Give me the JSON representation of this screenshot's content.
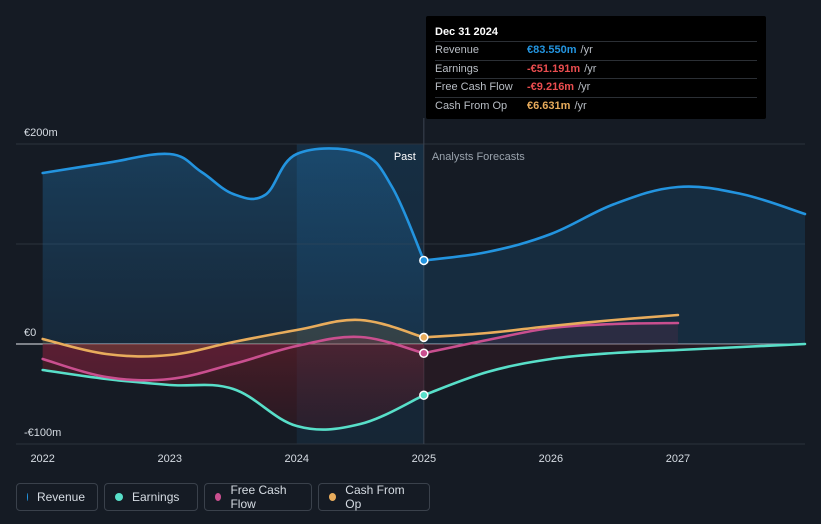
{
  "chart_data": {
    "type": "area",
    "currency": "€",
    "ylim": [
      -100,
      200
    ],
    "y_ticks": [
      {
        "value": 200,
        "label": "€200m"
      },
      {
        "value": 0,
        "label": "€0"
      },
      {
        "value": -100,
        "label": "-€100m"
      }
    ],
    "x_ticks": [
      {
        "value": 2022,
        "label": "2022"
      },
      {
        "value": 2023,
        "label": "2023"
      },
      {
        "value": 2024,
        "label": "2024"
      },
      {
        "value": 2025,
        "label": "2025"
      },
      {
        "value": 2026,
        "label": "2026"
      },
      {
        "value": 2027,
        "label": "2027"
      }
    ],
    "xlim": [
      2021.79,
      2028.0
    ],
    "past_label": "Past",
    "forecast_label": "Analysts Forecasts",
    "divider_x": 2025.0,
    "highlight_range": [
      2024.0,
      2025.0
    ],
    "series": [
      {
        "name": "Revenue",
        "key": "revenue",
        "color": "#2394df",
        "past": [
          [
            2022.0,
            171
          ],
          [
            2022.5,
            181
          ],
          [
            2023.0,
            190
          ],
          [
            2023.25,
            172
          ],
          [
            2023.5,
            150
          ],
          [
            2023.75,
            149
          ],
          [
            2024.0,
            190
          ],
          [
            2024.5,
            191
          ],
          [
            2024.75,
            157
          ],
          [
            2025.0,
            83.55
          ]
        ],
        "forecast": [
          [
            2025.0,
            83.55
          ],
          [
            2025.5,
            92
          ],
          [
            2026.0,
            110
          ],
          [
            2026.5,
            140
          ],
          [
            2027.0,
            157
          ],
          [
            2027.5,
            150
          ],
          [
            2028.0,
            130
          ]
        ]
      },
      {
        "name": "Earnings",
        "key": "earnings",
        "color": "#58dfc9",
        "past": [
          [
            2022.0,
            -26
          ],
          [
            2022.5,
            -35
          ],
          [
            2023.0,
            -41
          ],
          [
            2023.5,
            -45
          ],
          [
            2024.0,
            -82
          ],
          [
            2024.5,
            -80
          ],
          [
            2025.0,
            -51.191
          ]
        ],
        "forecast": [
          [
            2025.0,
            -51.191
          ],
          [
            2025.5,
            -28
          ],
          [
            2026.0,
            -15
          ],
          [
            2026.5,
            -9
          ],
          [
            2027.0,
            -6
          ],
          [
            2027.5,
            -3
          ],
          [
            2028.0,
            0
          ]
        ]
      },
      {
        "name": "Free Cash Flow",
        "key": "fcf",
        "color": "#c94f8f",
        "past": [
          [
            2022.0,
            -15
          ],
          [
            2022.5,
            -33
          ],
          [
            2023.0,
            -35
          ],
          [
            2023.5,
            -20
          ],
          [
            2024.0,
            -2
          ],
          [
            2024.5,
            7
          ],
          [
            2025.0,
            -9.216
          ]
        ],
        "forecast": [
          [
            2025.0,
            -9.216
          ],
          [
            2025.5,
            4
          ],
          [
            2026.0,
            16
          ],
          [
            2026.5,
            20
          ],
          [
            2027.0,
            21
          ]
        ]
      },
      {
        "name": "Cash From Op",
        "key": "cfo",
        "color": "#e8ac5c",
        "past": [
          [
            2022.0,
            5
          ],
          [
            2022.5,
            -10
          ],
          [
            2023.0,
            -11
          ],
          [
            2023.5,
            2
          ],
          [
            2024.0,
            14
          ],
          [
            2024.5,
            24
          ],
          [
            2025.0,
            6.631
          ]
        ],
        "forecast": [
          [
            2025.0,
            6.631
          ],
          [
            2025.5,
            11
          ],
          [
            2026.0,
            18
          ],
          [
            2026.5,
            24
          ],
          [
            2027.0,
            29
          ]
        ]
      }
    ],
    "tooltip": {
      "date": "Dec 31 2024",
      "rows": [
        {
          "label": "Revenue",
          "value": "€83.550m",
          "unit": "/yr",
          "color": "#2394df"
        },
        {
          "label": "Earnings",
          "value": "-€51.191m",
          "unit": "/yr",
          "color": "#ea4d4f"
        },
        {
          "label": "Free Cash Flow",
          "value": "-€9.216m",
          "unit": "/yr",
          "color": "#ea4d4f"
        },
        {
          "label": "Cash From Op",
          "value": "€6.631m",
          "unit": "/yr",
          "color": "#e8ac5c"
        }
      ]
    }
  },
  "legend": [
    {
      "label": "Revenue",
      "color": "#2394df"
    },
    {
      "label": "Earnings",
      "color": "#58dfc9"
    },
    {
      "label": "Free Cash Flow",
      "color": "#c94f8f"
    },
    {
      "label": "Cash From Op",
      "color": "#e8ac5c"
    }
  ]
}
